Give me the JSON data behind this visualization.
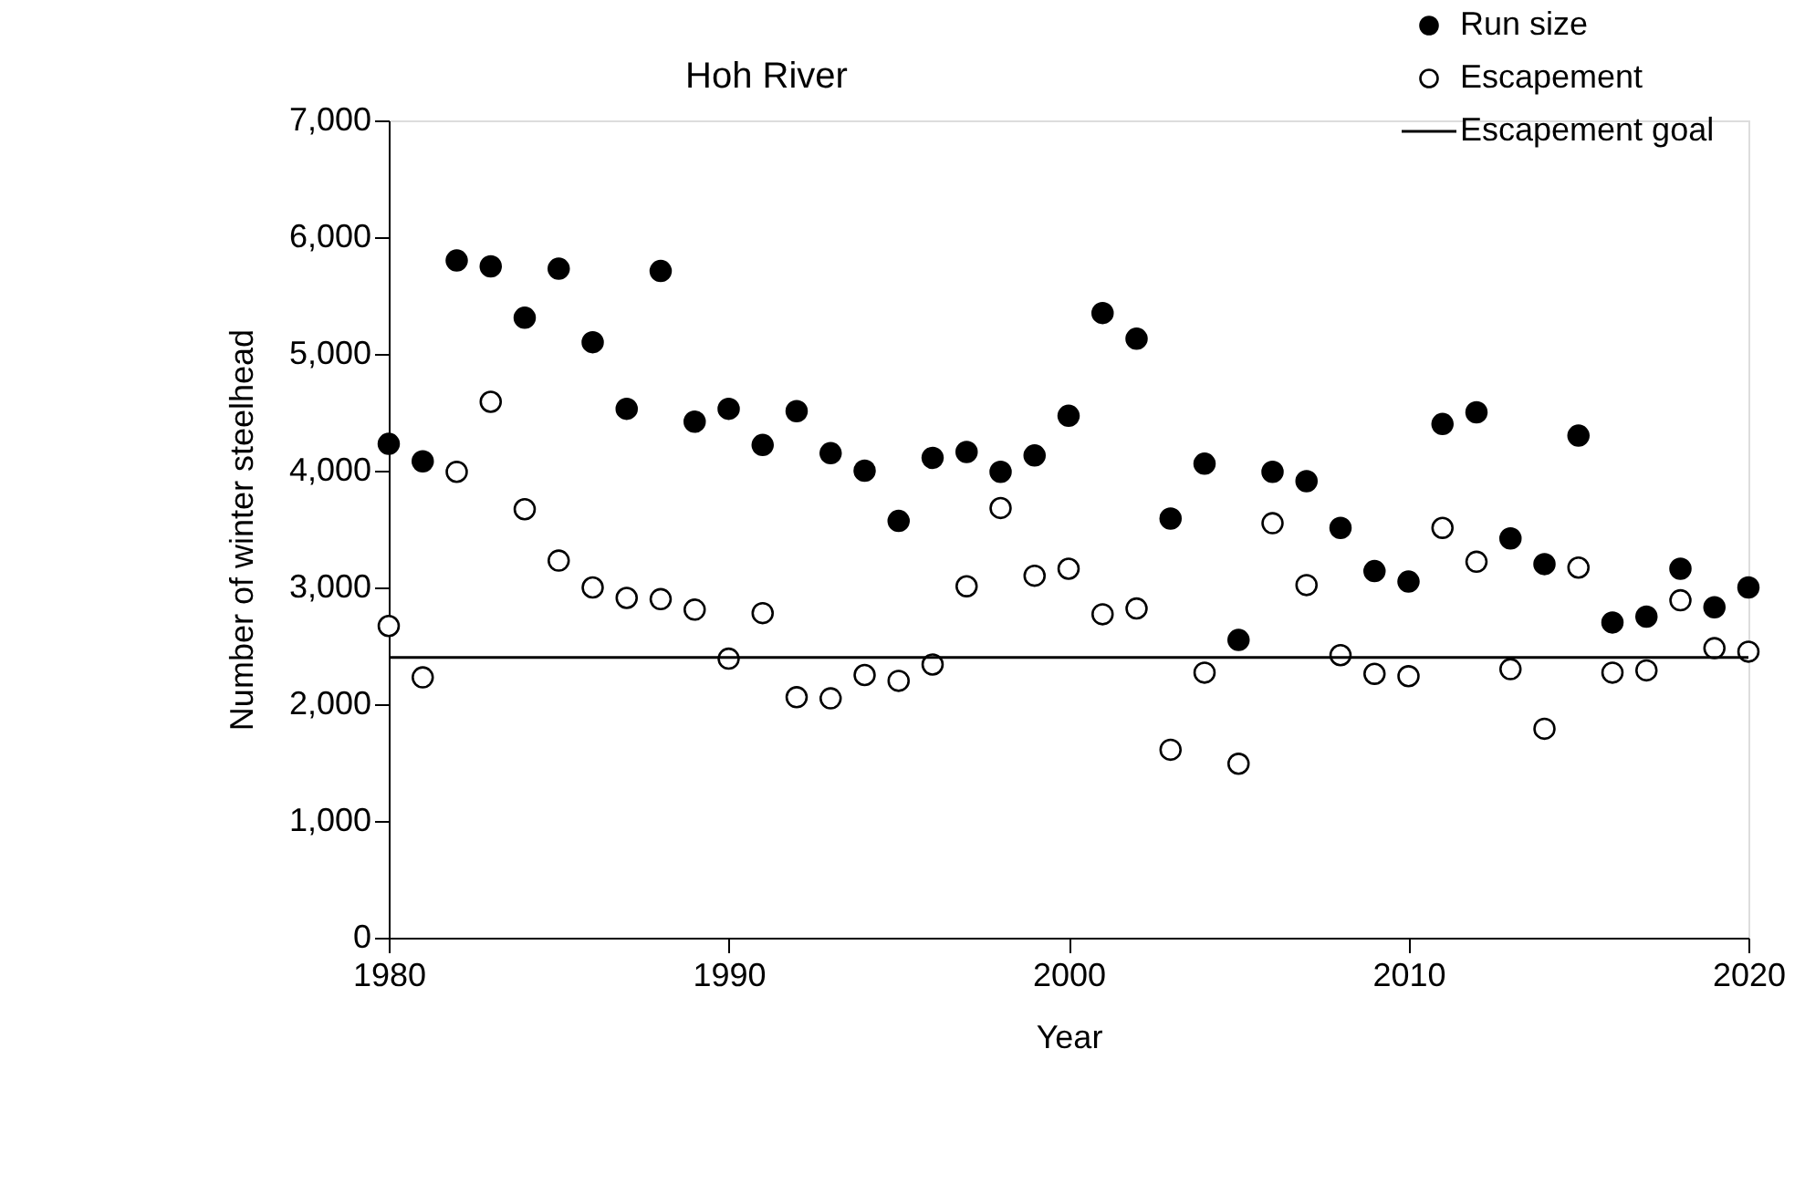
{
  "chart_data": {
    "type": "scatter",
    "title": "Hoh River",
    "xlabel": "Year",
    "ylabel": "Number of winter steelhead",
    "x": [
      1980,
      1981,
      1982,
      1983,
      1984,
      1985,
      1986,
      1987,
      1988,
      1989,
      1990,
      1991,
      1992,
      1993,
      1994,
      1995,
      1996,
      1997,
      1998,
      1999,
      2000,
      2001,
      2002,
      2003,
      2004,
      2005,
      2006,
      2007,
      2008,
      2009,
      2010,
      2011,
      2012,
      2013,
      2014,
      2015,
      2016,
      2017,
      2018,
      2019,
      2020
    ],
    "series": [
      {
        "name": "Run size",
        "color": "#000000",
        "values": [
          4230,
          4080,
          5800,
          5750,
          5310,
          5730,
          5100,
          4530,
          5710,
          4420,
          4530,
          4220,
          4510,
          4150,
          4000,
          3570,
          4110,
          4160,
          3990,
          4130,
          4470,
          5350,
          5130,
          3590,
          4060,
          2550,
          3990,
          3910,
          3510,
          3140,
          3050,
          4400,
          4500,
          3420,
          3200,
          4300,
          2700,
          2750,
          3160,
          2830,
          3000
        ]
      },
      {
        "name": "Escapement",
        "color": "#ffffff",
        "values": [
          2670,
          2230,
          3990,
          4590,
          3670,
          3230,
          3000,
          2910,
          2900,
          2810,
          2390,
          2780,
          2060,
          2050,
          2250,
          2200,
          2340,
          3010,
          3680,
          3100,
          3160,
          2770,
          2820,
          1610,
          2270,
          1490,
          3550,
          3020,
          2420,
          2260,
          2240,
          3510,
          3220,
          2300,
          1790,
          3170,
          2270,
          2290,
          2890,
          2480,
          2450
        ]
      }
    ],
    "ref_lines": [
      {
        "axis": "y",
        "value": 2400,
        "label": "Escapement goal",
        "color": "#000000",
        "line_style": "solid"
      }
    ],
    "xlim": [
      1980,
      2020
    ],
    "xticks": [
      1980,
      1990,
      2000,
      2010,
      2020
    ],
    "ylim": [
      0,
      7000
    ],
    "yticks": [
      {
        "value": 0,
        "label": "0"
      },
      {
        "value": 1000,
        "label": "1,000"
      },
      {
        "value": 2000,
        "label": "2,000"
      },
      {
        "value": 3000,
        "label": "3,000"
      },
      {
        "value": 4000,
        "label": "4,000"
      },
      {
        "value": 5000,
        "label": "5,000"
      },
      {
        "value": 6000,
        "label": "6,000"
      },
      {
        "value": 7000,
        "label": "7,000"
      }
    ],
    "grid": false,
    "legend": "top right",
    "marker": "circle"
  }
}
